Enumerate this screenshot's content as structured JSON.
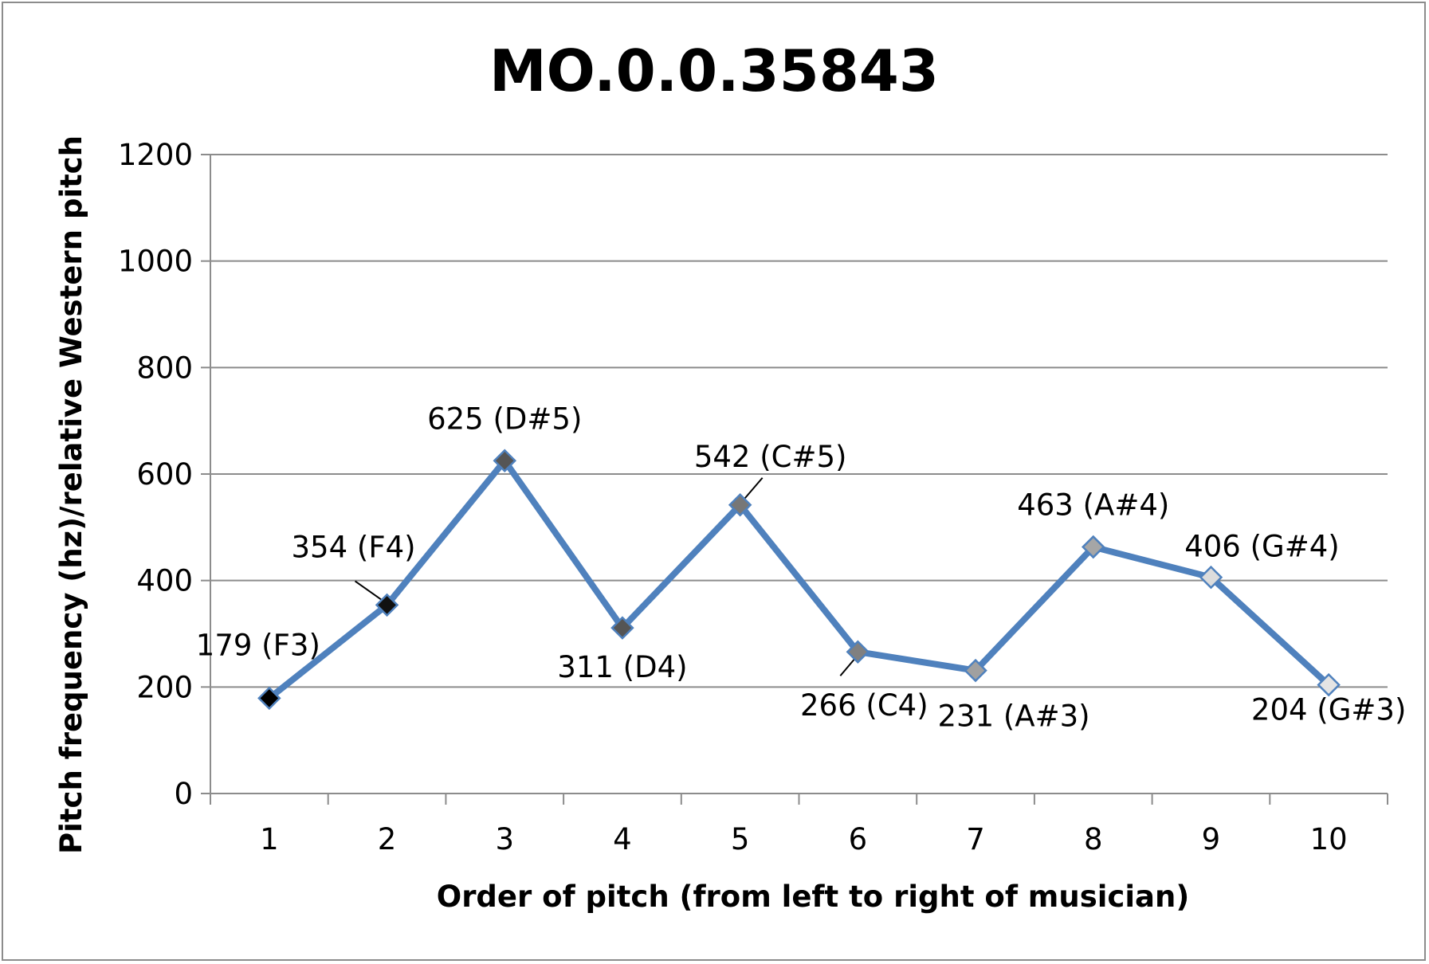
{
  "chart_data": {
    "type": "line",
    "title": "MO.0.0.35843",
    "xlabel": "Order of pitch (from left to right of musician)",
    "ylabel": "Pitch frequency (hz)/relative Western pitch",
    "ylim": [
      0,
      1200
    ],
    "yticks": [
      "0",
      "200",
      "400",
      "600",
      "800",
      "1000",
      "1200"
    ],
    "categories": [
      "1",
      "2",
      "3",
      "4",
      "5",
      "6",
      "7",
      "8",
      "9",
      "10"
    ],
    "grid": "horizontal",
    "series": [
      {
        "values": [
          179,
          354,
          625,
          311,
          542,
          266,
          231,
          463,
          406,
          204
        ],
        "line_color": "#4f81bd",
        "marker": "diamond",
        "marker_colors": [
          "#000000",
          "#111111",
          "#555555",
          "#555555",
          "#777777",
          "#808080",
          "#a0a0a0",
          "#a6a6a6",
          "#dcdcdc",
          "#e4e4e4"
        ]
      }
    ],
    "data_labels": [
      "179 (F3)",
      "354 (F4)",
      "625 (D#5)",
      "311 (D4)",
      "542 (C#5)",
      "266 (C4)",
      "231 (A#3)",
      "463 (A#4)",
      "406 (G#4)",
      "204 (G#3)"
    ]
  }
}
